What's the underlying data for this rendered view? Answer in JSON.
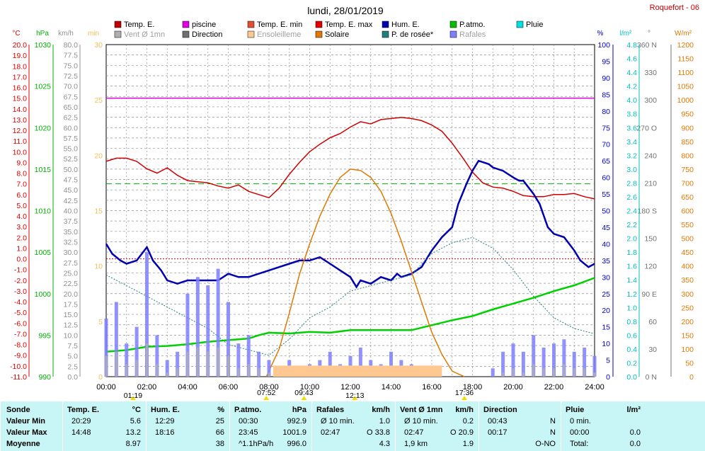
{
  "header": {
    "title": "lundi, 28/01/2019",
    "station": "Roquefort - 06"
  },
  "legend": [
    {
      "label": "Temp. E.",
      "color": "#c00000"
    },
    {
      "label": "piscine",
      "color": "#e000e0"
    },
    {
      "label": "Temp. E. min",
      "color": "#e05030"
    },
    {
      "label": "Temp. E. max",
      "color": "#e00000"
    },
    {
      "label": "Hum. E.",
      "color": "#0000b0"
    },
    {
      "label": "P.atmo.",
      "color": "#00c000"
    },
    {
      "label": "Pluie",
      "color": "#00e0e0"
    },
    {
      "label": "Vent Ø 1mn",
      "color": "#b0b0b0"
    },
    {
      "label": "Direction",
      "color": "#707070"
    },
    {
      "label": "Ensoleilleme",
      "color": "#ffc890"
    },
    {
      "label": "Solaire",
      "color": "#e07800"
    },
    {
      "label": "P. de rosée*",
      "color": "#208080"
    },
    {
      "label": "Rafales",
      "color": "#8080ff"
    }
  ],
  "axes": {
    "temp": {
      "unit": "°C",
      "color": "#e00000",
      "ticks": [
        "20.0",
        "19.0",
        "18.0",
        "17.0",
        "16.0",
        "15.0",
        "14.0",
        "13.0",
        "12.0",
        "11.0",
        "10.0",
        "9.0",
        "8.0",
        "7.0",
        "6.0",
        "5.0",
        "4.0",
        "3.0",
        "2.0",
        "1.0",
        "0.0",
        "-1.0",
        "-2.0",
        "-3.0",
        "-4.0",
        "-5.0",
        "-6.0",
        "-7.0",
        "-8.0",
        "-9.0",
        "-10.0",
        "-11.0"
      ]
    },
    "press": {
      "unit": "hPa",
      "color": "#00b000",
      "ticks": [
        "1030",
        "1025",
        "1020",
        "1015",
        "1010",
        "1005",
        "1000",
        "995",
        "990"
      ]
    },
    "wind": {
      "unit": "km/h",
      "color": "#909090",
      "ticks": [
        "80.0",
        "77.5",
        "75.0",
        "72.5",
        "70.0",
        "67.5",
        "65.0",
        "62.5",
        "60.0",
        "57.5",
        "55.0",
        "52.5",
        "50.0",
        "47.5",
        "45.0",
        "42.5",
        "40.0",
        "37.5",
        "35.0",
        "32.5",
        "30.0",
        "27.5",
        "25.0",
        "22.5",
        "20.0",
        "17.5",
        "15.0",
        "12.5",
        "10.0",
        "7.5",
        "5.0",
        "2.5",
        "0.0"
      ]
    },
    "min": {
      "unit": "min",
      "color": "#f0c060",
      "ticks": [
        "30",
        "25",
        "20",
        "15",
        "10",
        "5",
        "0"
      ]
    },
    "hum": {
      "unit": "%",
      "color": "#0000c0",
      "ticks": [
        "100",
        "95",
        "90",
        "85",
        "80",
        "75",
        "70",
        "65",
        "60",
        "55",
        "50",
        "45",
        "40",
        "35",
        "30",
        "25",
        "20",
        "15",
        "10",
        "5",
        "0"
      ]
    },
    "rain": {
      "unit": "l/m²",
      "color": "#00c0c0",
      "ticks": [
        "4.8",
        "4.6",
        "4.4",
        "4.2",
        "4.0",
        "3.8",
        "3.6",
        "3.4",
        "3.2",
        "3.0",
        "2.8",
        "2.6",
        "2.4",
        "2.2",
        "2.0",
        "1.8",
        "1.6",
        "1.4",
        "1.2",
        "1.0",
        "0.8",
        "0.6",
        "0.4",
        "0.2",
        "0.0"
      ]
    },
    "dir": {
      "unit": "°",
      "color": "#707070",
      "ticks": [
        "360 N",
        "330",
        "300",
        "270 O",
        "240",
        "210",
        "180 S",
        "150",
        "120",
        "90 E",
        "60",
        "30",
        "0 N"
      ]
    },
    "solar": {
      "unit": "W/m²",
      "color": "#e07800",
      "ticks": [
        "1200",
        "1150",
        "1100",
        "1050",
        "1000",
        "950",
        "900",
        "850",
        "800",
        "750",
        "700",
        "650",
        "600",
        "550",
        "500",
        "450",
        "400",
        "350",
        "300",
        "250",
        "200",
        "150",
        "100",
        "50",
        "0"
      ]
    },
    "time": {
      "ticks": [
        "00:00",
        "02:00",
        "04:00",
        "06:00",
        "08:00",
        "10:00",
        "12:00",
        "14:00",
        "16:00",
        "18:00",
        "20:00",
        "22:00",
        "24:00"
      ]
    }
  },
  "events": [
    {
      "label": "09:43",
      "hour": 9.72
    },
    {
      "label": "01:19",
      "hour": 1.32
    },
    {
      "label": "07:52",
      "hour": 7.87
    },
    {
      "label": "12:13",
      "hour": 12.22
    },
    {
      "label": "17:36",
      "hour": 17.6
    }
  ],
  "stats": {
    "sonde": {
      "title": "Sonde",
      "rows": [
        "Valeur Min",
        "Valeur Max",
        "Moyenne"
      ]
    },
    "temp": {
      "title": "Temp. E.",
      "unit": "°C",
      "rows": [
        [
          "20:29",
          "5.6"
        ],
        [
          "14:48",
          "13.2"
        ],
        [
          "",
          "8.97"
        ]
      ]
    },
    "hum": {
      "title": "Hum. E.",
      "unit": "%",
      "rows": [
        [
          "12:29",
          "25"
        ],
        [
          "18:16",
          "66"
        ],
        [
          "",
          "38"
        ]
      ]
    },
    "press": {
      "title": "P.atmo.",
      "unit": "hPa",
      "rows": [
        [
          "00:30",
          "992.9"
        ],
        [
          "23:45",
          "1001.9"
        ],
        [
          "^1.1hPa/h",
          "996.0"
        ]
      ]
    },
    "raf": {
      "title": "Rafales",
      "unit": "km/h",
      "rows": [
        [
          "Ø 10 min.",
          "1.0"
        ],
        [
          "02:47",
          "O 33.8"
        ],
        [
          "",
          "4.3"
        ]
      ]
    },
    "vent": {
      "title": "Vent Ø 1mn",
      "unit": "km/h",
      "rows": [
        [
          "Ø 10 min.",
          "0.2"
        ],
        [
          "02:47",
          "O 20.9"
        ],
        [
          "1,9 km",
          "1.9"
        ]
      ]
    },
    "dir": {
      "title": "Direction",
      "unit": "",
      "rows": [
        [
          "00:43",
          "N"
        ],
        [
          "00:17",
          "N"
        ],
        [
          "",
          "O-NO"
        ]
      ]
    },
    "pluie": {
      "title": "Pluie",
      "unit": "l/m²",
      "rows": [
        [
          "0 min.",
          ""
        ],
        [
          "00:00",
          "0.0"
        ],
        [
          "Total:",
          "0.0"
        ]
      ]
    }
  },
  "chart_data": {
    "type": "line",
    "x_unit": "hour",
    "xlim": [
      0,
      24
    ],
    "series": [
      {
        "name": "Temp. E.",
        "color": "#d00000",
        "axis": "temp",
        "ylim": [
          -11,
          20
        ],
        "x": [
          0,
          0.5,
          1,
          1.5,
          2,
          2.5,
          3,
          3.5,
          4,
          4.5,
          5,
          5.5,
          6,
          6.5,
          7,
          7.5,
          8,
          8.5,
          9,
          9.5,
          10,
          10.5,
          11,
          11.5,
          12,
          12.5,
          13,
          13.5,
          14,
          14.5,
          15,
          15.5,
          16,
          16.5,
          17,
          17.5,
          18,
          18.5,
          19,
          19.5,
          20,
          20.5,
          21,
          21.5,
          22,
          22.5,
          23,
          23.5,
          24
        ],
        "y": [
          9.1,
          9.4,
          9.4,
          9.1,
          8.4,
          8.0,
          8.5,
          7.8,
          7.3,
          7.2,
          7.1,
          6.8,
          6.6,
          6.9,
          6.3,
          6.0,
          5.7,
          6.6,
          7.9,
          9.0,
          10.0,
          10.7,
          11.3,
          11.7,
          12.3,
          12.8,
          12.6,
          13.0,
          13.1,
          13.2,
          13.1,
          12.9,
          12.5,
          11.9,
          10.8,
          9.5,
          8.1,
          7.1,
          6.7,
          6.6,
          6.3,
          5.9,
          5.8,
          5.8,
          6.0,
          6.0,
          6.1,
          5.8,
          5.6
        ]
      },
      {
        "name": "piscine",
        "color": "#e000e0",
        "axis": "temp",
        "ylim": [
          -11,
          20
        ],
        "x": [
          0,
          24
        ],
        "y": [
          15,
          15
        ]
      },
      {
        "name": "Hum. E.",
        "color": "#0000b0",
        "axis": "hum",
        "ylim": [
          0,
          100
        ],
        "x": [
          0,
          0.3,
          0.7,
          1,
          1.5,
          2,
          2.3,
          2.7,
          3,
          3.5,
          4,
          5,
          5.5,
          6,
          6.5,
          7,
          7.5,
          8,
          8.5,
          9,
          9.5,
          10,
          10.5,
          11,
          11.5,
          12,
          12.3,
          12.5,
          13,
          13.5,
          14,
          14.3,
          14.5,
          15,
          15.5,
          16,
          16.5,
          17,
          17.3,
          17.7,
          18,
          18.3,
          18.8,
          19,
          19.5,
          20,
          20.3,
          20.5,
          21,
          21.3,
          21.7,
          22,
          22.5,
          23,
          23.3,
          23.7,
          24
        ],
        "y": [
          40,
          37,
          35,
          34,
          35,
          39,
          35,
          32,
          29,
          28,
          29,
          29,
          29,
          31,
          30,
          30,
          31,
          32,
          33,
          34,
          35,
          35,
          36,
          34,
          32,
          30,
          27,
          29,
          28,
          30,
          29,
          31,
          30,
          31,
          33,
          38,
          42,
          45,
          52,
          58,
          62,
          65,
          64,
          63,
          62,
          60,
          59,
          59,
          55,
          52,
          45,
          43,
          42,
          38,
          35,
          33,
          34
        ]
      },
      {
        "name": "P.atmo.",
        "color": "#00d000",
        "axis": "press",
        "ylim": [
          990,
          1030
        ],
        "x": [
          0,
          1,
          2,
          3,
          4,
          5,
          6,
          7,
          7.5,
          8,
          9,
          10,
          11,
          12,
          13,
          14,
          15,
          16,
          17,
          18,
          19,
          20,
          21,
          22,
          23,
          24
        ],
        "y": [
          993.0,
          993.2,
          993.6,
          993.7,
          993.9,
          994.2,
          994.4,
          994.6,
          995.0,
          995.3,
          995.2,
          995.4,
          995.3,
          995.6,
          995.6,
          995.6,
          995.6,
          996.2,
          996.8,
          997.3,
          998.1,
          998.8,
          999.5,
          1000.3,
          1001.0,
          1001.9
        ]
      },
      {
        "name": "P. de rosée*",
        "color": "#208080",
        "axis": "temp",
        "ylim": [
          -11,
          20
        ],
        "x": [
          0,
          1,
          2,
          3,
          4,
          5,
          6,
          7,
          8,
          9,
          10,
          11,
          12,
          13,
          14,
          15,
          16,
          17,
          18,
          19,
          20,
          21,
          22,
          23,
          24
        ],
        "y": [
          -1.5,
          -2.5,
          -3.5,
          -4.5,
          -5.5,
          -6.5,
          -8.0,
          -8.5,
          -9.0,
          -7.5,
          -5.5,
          -4.5,
          -3.0,
          -2.5,
          -2.0,
          -1.5,
          0.5,
          1.5,
          2.0,
          1.0,
          -1.0,
          -3.5,
          -5.5,
          -6.5,
          -7.0
        ]
      },
      {
        "name": "Solaire",
        "color": "#e07800",
        "axis": "solar",
        "ylim": [
          0,
          1200
        ],
        "x": [
          7.87,
          8.5,
          9,
          9.5,
          10,
          10.5,
          11,
          11.5,
          12,
          12.5,
          13,
          13.5,
          14,
          14.5,
          15,
          15.5,
          16,
          16.5,
          17,
          17.6
        ],
        "y": [
          0,
          100,
          230,
          370,
          480,
          580,
          660,
          720,
          750,
          745,
          720,
          670,
          590,
          490,
          380,
          270,
          160,
          80,
          20,
          0
        ]
      },
      {
        "name": "Rafales",
        "color": "#8080ff",
        "axis": "wind",
        "ylim": [
          0,
          80
        ],
        "x": [
          0,
          0.5,
          1,
          1.5,
          2,
          2.5,
          3,
          3.5,
          4,
          4.5,
          5,
          5.5,
          6,
          6.5,
          7,
          7.5,
          8,
          8.5,
          9,
          9.5,
          10,
          10.5,
          11,
          11.5,
          12,
          12.5,
          13,
          13.5,
          14,
          14.5,
          15,
          15.5,
          16,
          16.5,
          17,
          17.5,
          18,
          18.5,
          19,
          19.5,
          20,
          20.5,
          21,
          21.5,
          22,
          22.5,
          23,
          23.5,
          24
        ],
        "y": [
          14,
          18,
          8,
          12,
          30,
          10,
          4,
          6,
          20,
          24,
          22,
          26,
          18,
          8,
          10,
          6,
          4,
          2,
          4,
          2,
          3,
          4,
          6,
          3,
          5,
          7,
          4,
          3,
          6,
          4,
          3,
          2,
          1,
          0,
          0,
          0,
          0,
          0,
          2,
          6,
          8,
          6,
          10,
          7,
          8,
          9,
          6,
          7,
          5
        ]
      },
      {
        "name": "Vent Ø 1mn",
        "color": "#b0b0b0",
        "axis": "wind",
        "ylim": [
          0,
          80
        ],
        "x": [
          0,
          0.5,
          1,
          1.5,
          2,
          2.5,
          3,
          3.5,
          4,
          4.5,
          5,
          5.5,
          6,
          6.5,
          7,
          7.5,
          8,
          8.5,
          9,
          9.5,
          10,
          10.5,
          11,
          11.5,
          12,
          12.5,
          13,
          13.5,
          14,
          14.5,
          15,
          15.5,
          16,
          16.5,
          17,
          17.5,
          18,
          18.5,
          19,
          19.5,
          20,
          20.5,
          21,
          21.5,
          22,
          22.5,
          23,
          23.5,
          24
        ],
        "y": [
          5,
          6,
          3,
          4,
          8,
          3,
          1,
          2,
          6,
          7,
          6,
          7,
          5,
          2,
          3,
          2,
          1,
          0,
          1,
          0,
          1,
          1,
          2,
          1,
          1,
          2,
          1,
          1,
          2,
          1,
          1,
          0,
          0,
          0,
          0,
          0,
          0,
          0,
          0,
          1,
          2,
          1,
          3,
          2,
          2,
          3,
          2,
          2,
          1
        ]
      },
      {
        "name": "Ensoleilleme",
        "color": "#ffc890",
        "axis": "min",
        "ylim": [
          0,
          30
        ],
        "x": [
          8.2,
          16.5
        ],
        "y": [
          1,
          1
        ]
      }
    ],
    "reference_lines": [
      {
        "axis": "temp",
        "value": 0.0,
        "color": "#d00000",
        "style": "dotted"
      },
      {
        "axis": "temp",
        "value": 7.0,
        "color": "#00b000",
        "style": "dashed"
      }
    ]
  }
}
